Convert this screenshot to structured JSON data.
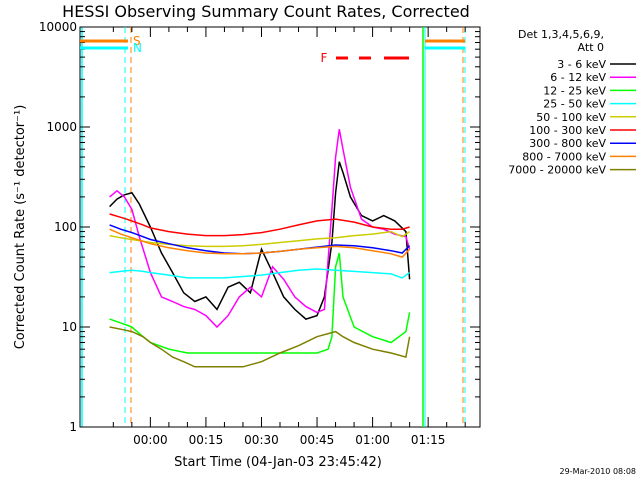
{
  "chart_data": {
    "type": "line",
    "title": "HESSI Observing Summary Count Rates, Corrected",
    "xlabel": "Start Time (04-Jan-03 23:45:42)",
    "ylabel": "Corrected Count Rate (s⁻¹ detector⁻¹)",
    "yscale": "log",
    "ylim": [
      1,
      10000
    ],
    "xlim": [
      -19,
      89
    ],
    "x_unit": "minutes after 00:00",
    "x_tick_labels": [
      "00:00",
      "00:15",
      "00:30",
      "00:45",
      "01:00",
      "01:15"
    ],
    "x_tick_values": [
      0,
      15,
      30,
      45,
      60,
      75
    ],
    "y_tick_labels": [
      "1",
      "10",
      "100",
      "1000",
      "10000"
    ],
    "y_tick_values": [
      1,
      10,
      100,
      1000,
      10000
    ],
    "legend": {
      "header": [
        "Det 1,3,4,5,6,9,",
        "Att 0"
      ],
      "placement": "right"
    },
    "series": [
      {
        "name": "3 - 6 keV",
        "color": "#000000",
        "x": [
          -11,
          -9,
          -7,
          -5,
          -3,
          0,
          3,
          6,
          9,
          12,
          15,
          18,
          21,
          24,
          27,
          30,
          33,
          36,
          39,
          42,
          45,
          47,
          49,
          50,
          51,
          52,
          54,
          57,
          60,
          63,
          66,
          69,
          70
        ],
        "y": [
          160,
          190,
          210,
          220,
          170,
          100,
          55,
          35,
          22,
          18,
          20,
          15,
          25,
          28,
          22,
          60,
          35,
          20,
          15,
          12,
          13,
          20,
          70,
          220,
          450,
          350,
          200,
          130,
          115,
          130,
          115,
          90,
          30
        ]
      },
      {
        "name": "6 - 12 keV",
        "color": "#ff00ff",
        "x": [
          -11,
          -9,
          -7,
          -5,
          -3,
          0,
          3,
          6,
          9,
          12,
          15,
          18,
          21,
          24,
          27,
          30,
          33,
          36,
          39,
          42,
          45,
          47,
          49,
          50,
          51,
          52,
          54,
          57,
          60,
          63,
          66,
          69,
          70
        ],
        "y": [
          200,
          230,
          200,
          150,
          80,
          35,
          20,
          18,
          16,
          15,
          13,
          10,
          13,
          20,
          25,
          20,
          40,
          30,
          20,
          16,
          14,
          15,
          150,
          500,
          950,
          600,
          250,
          120,
          100,
          95,
          85,
          80,
          60
        ]
      },
      {
        "name": "12 - 25 keV",
        "color": "#00ff00",
        "x": [
          -11,
          -8,
          -5,
          -2,
          0,
          5,
          10,
          15,
          20,
          25,
          30,
          35,
          40,
          45,
          48,
          49,
          50,
          51,
          52,
          55,
          60,
          65,
          69,
          70
        ],
        "y": [
          12,
          11,
          10,
          8,
          7,
          6,
          5.5,
          5.5,
          5.5,
          5.5,
          5.5,
          5.5,
          5.5,
          5.5,
          6,
          8,
          40,
          55,
          20,
          10,
          8,
          7,
          9,
          14
        ]
      },
      {
        "name": "25 - 50 keV",
        "color": "#00ffff",
        "x": [
          -11,
          -8,
          -5,
          -2,
          0,
          5,
          10,
          15,
          20,
          25,
          30,
          35,
          40,
          45,
          50,
          55,
          60,
          65,
          68,
          70
        ],
        "y": [
          35,
          36,
          37,
          36,
          35,
          33,
          31,
          31,
          31,
          32,
          33,
          35,
          37,
          38,
          37,
          36,
          35,
          34,
          31,
          35
        ]
      },
      {
        "name": "50 - 100 keV",
        "color": "#cccc00",
        "x": [
          -11,
          -8,
          -5,
          -2,
          0,
          5,
          10,
          15,
          20,
          25,
          30,
          35,
          40,
          45,
          50,
          55,
          60,
          65,
          68,
          70
        ],
        "y": [
          82,
          78,
          75,
          72,
          70,
          67,
          65,
          64,
          64,
          65,
          67,
          70,
          73,
          76,
          78,
          82,
          85,
          90,
          80,
          90
        ]
      },
      {
        "name": "100 - 300 keV",
        "color": "#ff0000",
        "x": [
          -11,
          -8,
          -5,
          -2,
          0,
          5,
          10,
          15,
          20,
          25,
          30,
          35,
          40,
          45,
          50,
          55,
          60,
          65,
          68,
          70
        ],
        "y": [
          135,
          125,
          115,
          105,
          98,
          90,
          85,
          82,
          82,
          84,
          88,
          95,
          105,
          115,
          120,
          112,
          100,
          95,
          95,
          100
        ]
      },
      {
        "name": "300 - 800 keV",
        "color": "#0000ff",
        "x": [
          -11,
          -8,
          -5,
          -2,
          0,
          5,
          10,
          15,
          20,
          25,
          30,
          35,
          40,
          45,
          50,
          55,
          60,
          65,
          68,
          70
        ],
        "y": [
          105,
          95,
          88,
          80,
          75,
          68,
          62,
          58,
          55,
          54,
          55,
          57,
          60,
          63,
          66,
          65,
          62,
          58,
          55,
          65
        ]
      },
      {
        "name": "800 - 7000 keV",
        "color": "#ff8000",
        "x": [
          -11,
          -8,
          -5,
          -2,
          0,
          5,
          10,
          15,
          20,
          25,
          30,
          35,
          40,
          45,
          50,
          55,
          60,
          65,
          68,
          70
        ],
        "y": [
          95,
          85,
          78,
          72,
          68,
          62,
          58,
          55,
          54,
          54,
          55,
          57,
          60,
          62,
          64,
          62,
          58,
          54,
          50,
          60
        ]
      },
      {
        "name": "7000 - 20000 keV",
        "color": "#808000",
        "x": [
          -11,
          -8,
          -5,
          -2,
          0,
          3,
          6,
          9,
          12,
          15,
          20,
          25,
          30,
          35,
          40,
          45,
          50,
          52,
          55,
          60,
          65,
          69,
          70
        ],
        "y": [
          10,
          9.5,
          9,
          8,
          7,
          6,
          5,
          4.5,
          4,
          4,
          4,
          4,
          4.5,
          5.5,
          6.5,
          8,
          9,
          8,
          7,
          6,
          5.5,
          5,
          8
        ]
      }
    ],
    "orbit_bars": [
      {
        "label": "S",
        "color": "#ff8000"
      },
      {
        "label": "N",
        "color": "#00ffff"
      }
    ],
    "flare_flag": {
      "label": "F",
      "color": "#ff0000"
    }
  },
  "footer_date": "29-Mar-2010 08:08"
}
